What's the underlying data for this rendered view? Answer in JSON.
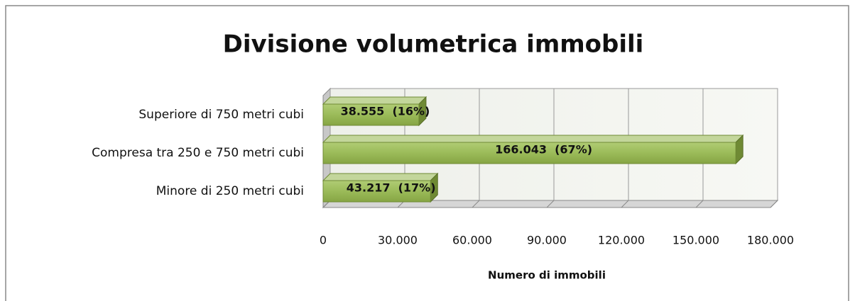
{
  "chart_data": {
    "type": "bar",
    "orientation": "horizontal",
    "three_d": true,
    "title": "Divisione volumetrica immobili",
    "categories": [
      "Superiore di 750 metri cubi",
      "Compresa tra 250 e 750 metri cubi",
      "Minore di 250 metri cubi"
    ],
    "values": [
      38555,
      166043,
      43217
    ],
    "value_labels": [
      "38.555  (16%)",
      "166.043  (67%)",
      "43.217  (17%)"
    ],
    "color": "#9bbb59",
    "xlim": [
      0,
      180000
    ],
    "xticks": [
      0,
      {
        "value": 30000,
        "label": "30.000"
      },
      {
        "value": 60000,
        "label": "60.000"
      },
      {
        "value": 90000,
        "label": "90.000"
      },
      {
        "value": 120000,
        "label": "120.000"
      },
      {
        "value": 150000,
        "label": "150.000"
      },
      {
        "value": 180000,
        "label": "180.000"
      }
    ],
    "xlabel": "Numero di immobili",
    "grid": true
  }
}
